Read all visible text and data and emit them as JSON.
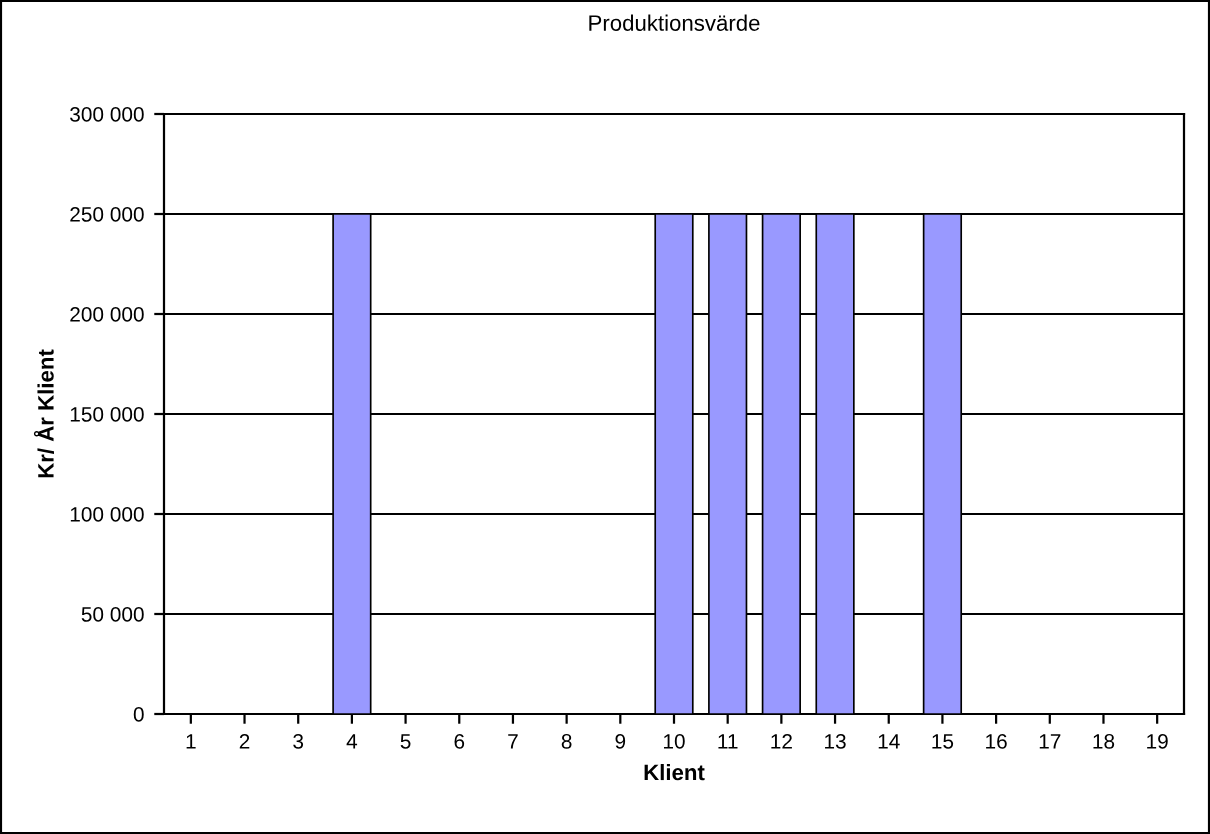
{
  "chart_data": {
    "type": "bar",
    "title": "Produktionsvärde",
    "xlabel": "Klient",
    "ylabel": "Kr/ År Klient",
    "categories": [
      "1",
      "2",
      "3",
      "4",
      "5",
      "6",
      "7",
      "8",
      "9",
      "10",
      "11",
      "12",
      "13",
      "14",
      "15",
      "16",
      "17",
      "18",
      "19"
    ],
    "values": [
      0,
      0,
      0,
      250000,
      0,
      0,
      0,
      0,
      0,
      250000,
      250000,
      250000,
      250000,
      0,
      250000,
      0,
      0,
      0,
      0
    ],
    "color": "#9999ff",
    "ylim": [
      0,
      300000
    ],
    "yticks": [
      {
        "value": 0,
        "label": "0"
      },
      {
        "value": 50000,
        "label": "50 000"
      },
      {
        "value": 100000,
        "label": "100 000"
      },
      {
        "value": 150000,
        "label": "150 000"
      },
      {
        "value": 200000,
        "label": "200 000"
      },
      {
        "value": 250000,
        "label": "250 000"
      },
      {
        "value": 300000,
        "label": "300 000"
      }
    ],
    "grid": "y",
    "legend": false
  }
}
